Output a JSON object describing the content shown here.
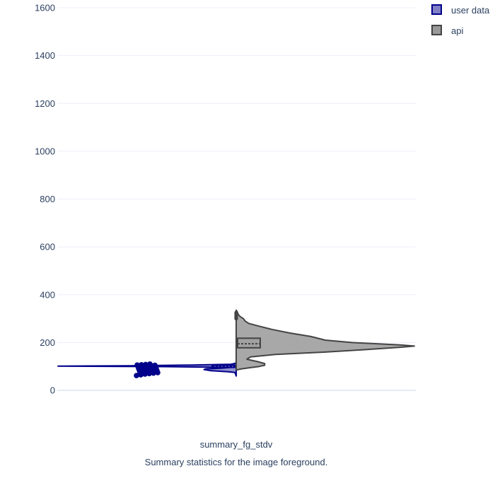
{
  "chart_data": {
    "type": "violin",
    "title": "",
    "xlabel": "Summary statistics for the image foreground.",
    "ylabel": "",
    "categories": [
      "summary_fg_stdv"
    ],
    "ylim": [
      0,
      1600
    ],
    "yticks": [
      0,
      200,
      400,
      600,
      800,
      1000,
      1200,
      1400,
      1600
    ],
    "grid": true,
    "legend_position": "top-right",
    "series": [
      {
        "name": "user data",
        "side": "negative",
        "color": "#00008b",
        "fill": "#7f7fc5",
        "density": [
          [
            60,
            0
          ],
          [
            64,
            0.002
          ],
          [
            70,
            0.004
          ],
          [
            75,
            0.01
          ],
          [
            78,
            0.05
          ],
          [
            82,
            0.14
          ],
          [
            87,
            0.18
          ],
          [
            90,
            0.17
          ],
          [
            93,
            0.08
          ],
          [
            96,
            0.03
          ],
          [
            99,
            0.4
          ],
          [
            101,
            1.0
          ],
          [
            103,
            0.6
          ],
          [
            106,
            0.25
          ],
          [
            109,
            0.03
          ],
          [
            112,
            0.01
          ],
          [
            115,
            0
          ]
        ],
        "box": {
          "q1": 96,
          "median": 101,
          "q3": 105,
          "whisker_low": 60,
          "whisker_high": 115
        },
        "points": [
          62,
          65,
          68,
          70,
          72,
          74,
          75,
          76,
          78,
          80,
          82,
          84,
          85,
          86,
          88,
          90,
          92,
          94,
          96,
          98,
          100,
          101,
          102,
          103,
          104,
          105,
          106,
          107,
          108,
          110
        ]
      },
      {
        "name": "api",
        "side": "positive",
        "color": "#444444",
        "fill": "#999999",
        "density": [
          [
            85,
            0
          ],
          [
            90,
            0.03
          ],
          [
            95,
            0.08
          ],
          [
            100,
            0.13
          ],
          [
            105,
            0.16
          ],
          [
            112,
            0.16
          ],
          [
            120,
            0.12
          ],
          [
            130,
            0.06
          ],
          [
            140,
            0.08
          ],
          [
            150,
            0.22
          ],
          [
            160,
            0.5
          ],
          [
            170,
            0.72
          ],
          [
            180,
            0.92
          ],
          [
            185,
            1.0
          ],
          [
            190,
            0.92
          ],
          [
            200,
            0.65
          ],
          [
            210,
            0.5
          ],
          [
            225,
            0.42
          ],
          [
            240,
            0.3
          ],
          [
            255,
            0.2
          ],
          [
            270,
            0.12
          ],
          [
            280,
            0.07
          ],
          [
            290,
            0.05
          ],
          [
            300,
            0.04
          ],
          [
            310,
            0.02
          ],
          [
            320,
            0.01
          ],
          [
            330,
            0.005
          ],
          [
            335,
            0
          ]
        ],
        "box": {
          "q1": 178,
          "median": 195,
          "q3": 218,
          "whisker_low": 85,
          "whisker_high": 335
        },
        "outliers": [
          300,
          305,
          310,
          315,
          320,
          325
        ]
      }
    ]
  }
}
